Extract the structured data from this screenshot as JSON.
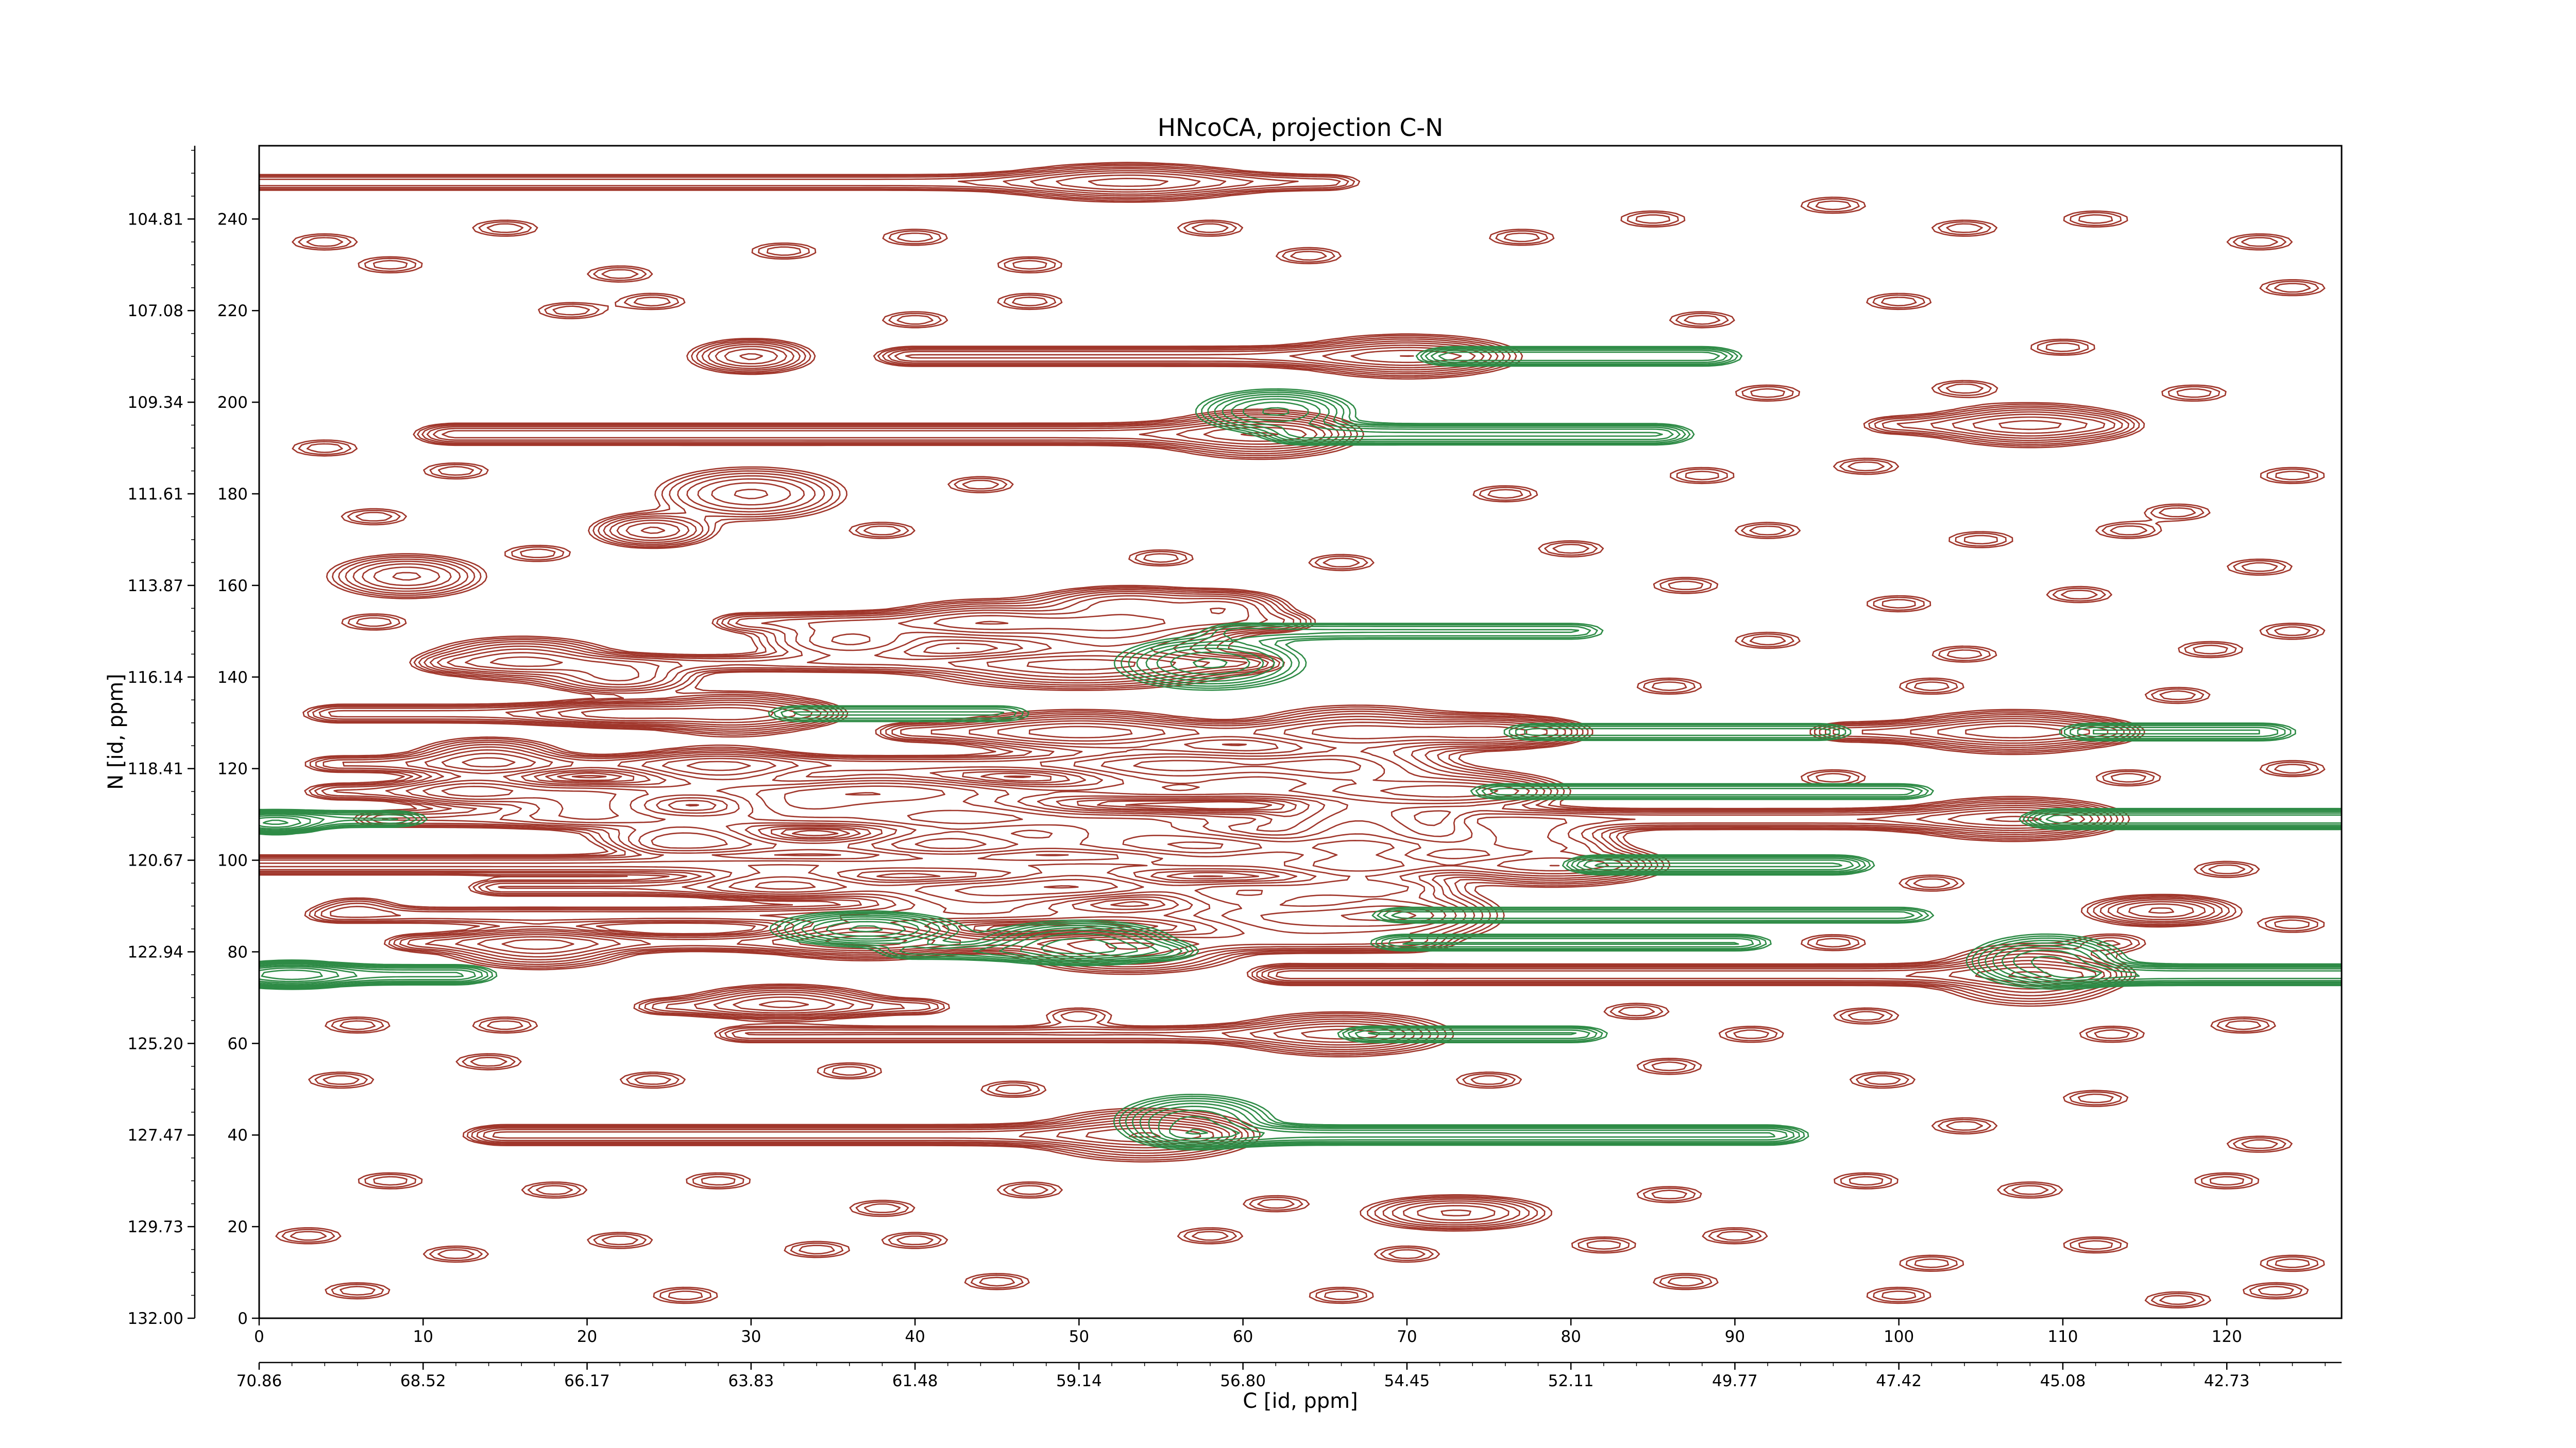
{
  "chart_data": {
    "type": "contour",
    "title": "HNcoCA, projection C-N",
    "xlabel": "C [id, ppm]",
    "ylabel": "N [id, ppm]",
    "xlim": [
      0,
      127
    ],
    "ylim": [
      0,
      256
    ],
    "x_ticks": [
      "0",
      "10",
      "20",
      "30",
      "40",
      "50",
      "60",
      "70",
      "80",
      "90",
      "100",
      "110",
      "120"
    ],
    "y_ticks": [
      "0",
      "20",
      "40",
      "60",
      "80",
      "100",
      "120",
      "140",
      "160",
      "180",
      "200",
      "220",
      "240"
    ],
    "x_ppm_ticks": [
      "70.86",
      "68.52",
      "66.17",
      "63.83",
      "61.48",
      "59.14",
      "56.80",
      "54.45",
      "52.11",
      "49.77",
      "47.42",
      "45.08",
      "42.73"
    ],
    "y_ppm_ticks": [
      "132.00",
      "129.73",
      "127.47",
      "125.20",
      "122.94",
      "120.67",
      "118.41",
      "116.14",
      "113.87",
      "111.61",
      "109.34",
      "107.08",
      "104.81"
    ],
    "colors": {
      "positive": "#a0362b",
      "negative": "#2e8b46"
    },
    "peaks": [
      {
        "x": 53,
        "y": 248,
        "sx": 4,
        "sy": 2.2,
        "sign": 1
      },
      {
        "x": 70,
        "y": 210,
        "sx": 3.5,
        "sy": 2.5,
        "sign": 1
      },
      {
        "x": 61,
        "y": 193,
        "sx": 3.2,
        "sy": 2.8,
        "sign": 1
      },
      {
        "x": 108,
        "y": 195,
        "sx": 3.2,
        "sy": 2.5,
        "sign": 1
      },
      {
        "x": 30,
        "y": 210,
        "sx": 2,
        "sy": 2,
        "sign": 1
      },
      {
        "x": 9,
        "y": 162,
        "sx": 2.5,
        "sy": 2.5,
        "sign": 1
      },
      {
        "x": 30,
        "y": 180,
        "sx": 3,
        "sy": 3,
        "sign": 1
      },
      {
        "x": 24,
        "y": 172,
        "sx": 2,
        "sy": 2,
        "sign": 1
      },
      {
        "x": 16,
        "y": 144,
        "sx": 3,
        "sy": 2.5,
        "sign": 1
      },
      {
        "x": 22,
        "y": 140,
        "sx": 2.5,
        "sy": 2,
        "sign": 1
      },
      {
        "x": 36,
        "y": 148,
        "sx": 3,
        "sy": 2.5,
        "sign": 1
      },
      {
        "x": 44,
        "y": 152,
        "sx": 3,
        "sy": 2.5,
        "sign": 1
      },
      {
        "x": 52,
        "y": 150,
        "sx": 4,
        "sy": 3,
        "sign": 1
      },
      {
        "x": 53,
        "y": 156,
        "sx": 3,
        "sy": 2,
        "sign": 1
      },
      {
        "x": 59,
        "y": 155,
        "sx": 2,
        "sy": 2,
        "sign": 1
      },
      {
        "x": 50,
        "y": 142,
        "sx": 5,
        "sy": 2.5,
        "sign": 1
      },
      {
        "x": 29,
        "y": 132,
        "sx": 3,
        "sy": 2.5,
        "sign": 1
      },
      {
        "x": 22,
        "y": 132,
        "sx": 3,
        "sy": 1.5,
        "sign": 1
      },
      {
        "x": 14,
        "y": 122,
        "sx": 2.5,
        "sy": 2.5,
        "sign": 1
      },
      {
        "x": 28,
        "y": 120,
        "sx": 3,
        "sy": 2.5,
        "sign": 1
      },
      {
        "x": 20,
        "y": 112,
        "sx": 3,
        "sy": 2.5,
        "sign": 1
      },
      {
        "x": 13,
        "y": 115,
        "sx": 2.5,
        "sy": 2,
        "sign": 1
      },
      {
        "x": 50,
        "y": 128,
        "sx": 4,
        "sy": 2.5,
        "sign": 1
      },
      {
        "x": 56,
        "y": 120,
        "sx": 4,
        "sy": 3,
        "sign": 1
      },
      {
        "x": 67,
        "y": 128,
        "sx": 3.5,
        "sy": 3,
        "sign": 1
      },
      {
        "x": 66,
        "y": 120,
        "sx": 3.5,
        "sy": 2.5,
        "sign": 1
      },
      {
        "x": 75,
        "y": 128,
        "sx": 3,
        "sy": 2,
        "sign": 1
      },
      {
        "x": 73,
        "y": 115,
        "sx": 3.5,
        "sy": 2.5,
        "sign": 1
      },
      {
        "x": 107,
        "y": 128,
        "sx": 3.5,
        "sy": 2.5,
        "sign": 1
      },
      {
        "x": 38,
        "y": 115,
        "sx": 4,
        "sy": 2.5,
        "sign": 1
      },
      {
        "x": 43,
        "y": 110,
        "sx": 4,
        "sy": 2.5,
        "sign": 1
      },
      {
        "x": 33,
        "y": 112,
        "sx": 3,
        "sy": 2,
        "sign": 1
      },
      {
        "x": 26,
        "y": 105,
        "sx": 3,
        "sy": 2,
        "sign": 1
      },
      {
        "x": 42,
        "y": 104,
        "sx": 3,
        "sy": 2,
        "sign": 1
      },
      {
        "x": 53,
        "y": 106,
        "sx": 4,
        "sy": 2.5,
        "sign": 1
      },
      {
        "x": 58,
        "y": 103,
        "sx": 3,
        "sy": 2,
        "sign": 1
      },
      {
        "x": 67,
        "y": 102,
        "sx": 3,
        "sy": 8,
        "sign": 1
      },
      {
        "x": 77,
        "y": 106,
        "sx": 3,
        "sy": 2,
        "sign": 1
      },
      {
        "x": 79,
        "y": 99,
        "sx": 3.5,
        "sy": 2.5,
        "sign": 1
      },
      {
        "x": 107,
        "y": 109,
        "sx": 3.5,
        "sy": 2.5,
        "sign": 1
      },
      {
        "x": 32,
        "y": 95,
        "sx": 3,
        "sy": 2,
        "sign": 1
      },
      {
        "x": 44,
        "y": 92,
        "sx": 4,
        "sy": 2.5,
        "sign": 1
      },
      {
        "x": 50,
        "y": 95,
        "sx": 3,
        "sy": 2,
        "sign": 1
      },
      {
        "x": 60,
        "y": 92,
        "sx": 3,
        "sy": 2,
        "sign": 1
      },
      {
        "x": 63,
        "y": 86,
        "sx": 4,
        "sy": 2.5,
        "sign": 1
      },
      {
        "x": 70,
        "y": 88,
        "sx": 3,
        "sy": 3,
        "sign": 1
      },
      {
        "x": 17,
        "y": 81,
        "sx": 3,
        "sy": 2.5,
        "sign": 1
      },
      {
        "x": 37,
        "y": 83,
        "sx": 3.5,
        "sy": 2.5,
        "sign": 1
      },
      {
        "x": 53,
        "y": 80,
        "sx": 3.5,
        "sy": 2.5,
        "sign": 1
      },
      {
        "x": 108,
        "y": 75,
        "sx": 3,
        "sy": 3.5,
        "sign": 1
      },
      {
        "x": 116,
        "y": 89,
        "sx": 2.5,
        "sy": 1.8,
        "sign": 1
      },
      {
        "x": 32,
        "y": 69,
        "sx": 3,
        "sy": 2,
        "sign": 1
      },
      {
        "x": 66,
        "y": 62,
        "sx": 3.5,
        "sy": 2.5,
        "sign": 1
      },
      {
        "x": 54,
        "y": 40,
        "sx": 3.5,
        "sy": 3,
        "sign": 1
      },
      {
        "x": 73,
        "y": 23,
        "sx": 3,
        "sy": 2,
        "sign": 1
      },
      {
        "x": 37,
        "y": 85,
        "sx": 3,
        "sy": 2,
        "sign": -1
      },
      {
        "x": 50,
        "y": 82,
        "sx": 3,
        "sy": 2.5,
        "sign": -1
      },
      {
        "x": 58,
        "y": 143,
        "sx": 3,
        "sy": 3,
        "sign": -1
      },
      {
        "x": 57,
        "y": 43,
        "sx": 2.5,
        "sy": 3,
        "sign": -1
      },
      {
        "x": 62,
        "y": 198,
        "sx": 2.5,
        "sy": 2.5,
        "sign": -1
      },
      {
        "x": 109,
        "y": 78,
        "sx": 2.5,
        "sy": 3,
        "sign": -1
      },
      {
        "x": 2,
        "y": 75,
        "sx": 2,
        "sy": 1.5,
        "sign": -1
      },
      {
        "x": 1,
        "y": 108,
        "sx": 1.5,
        "sy": 1.2,
        "sign": -1
      }
    ],
    "ridges": [
      {
        "y": 248,
        "x0": 0,
        "x1": 65,
        "sy": 1.2,
        "sign": 1,
        "a": 0.4
      },
      {
        "y": 210,
        "x0": 40,
        "x1": 73,
        "sy": 1.3,
        "sign": 1,
        "a": 0.6
      },
      {
        "y": 210,
        "x0": 73,
        "x1": 88,
        "sy": 1.3,
        "sign": -1,
        "a": 0.55
      },
      {
        "y": 193,
        "x0": 12,
        "x1": 63,
        "sy": 1.4,
        "sign": 1,
        "a": 0.65
      },
      {
        "y": 193,
        "x0": 64,
        "x1": 85,
        "sy": 1.4,
        "sign": -1,
        "a": 0.6
      },
      {
        "y": 195,
        "x0": 100,
        "x1": 112,
        "sy": 1.3,
        "sign": 1,
        "a": 0.4
      },
      {
        "y": 152,
        "x0": 30,
        "x1": 62,
        "sy": 1.3,
        "sign": 1,
        "a": 0.5
      },
      {
        "y": 150,
        "x0": 60,
        "x1": 80,
        "sy": 1.3,
        "sign": -1,
        "a": 0.35
      },
      {
        "y": 143,
        "x0": 12,
        "x1": 60,
        "sy": 1.2,
        "sign": 1,
        "a": 0.45
      },
      {
        "y": 132,
        "x0": 5,
        "x1": 33,
        "sy": 1.3,
        "sign": 1,
        "a": 0.5
      },
      {
        "y": 132,
        "x0": 33,
        "x1": 45,
        "sy": 1.3,
        "sign": -1,
        "a": 0.35
      },
      {
        "y": 128,
        "x0": 40,
        "x1": 78,
        "sy": 1.3,
        "sign": 1,
        "a": 0.5
      },
      {
        "y": 128,
        "x0": 78,
        "x1": 95,
        "sy": 1.3,
        "sign": -1,
        "a": 0.4
      },
      {
        "y": 128,
        "x0": 97,
        "x1": 112,
        "sy": 1.3,
        "sign": 1,
        "a": 0.55
      },
      {
        "y": 128,
        "x0": 112,
        "x1": 122,
        "sy": 1.3,
        "sign": -1,
        "a": 0.45
      },
      {
        "y": 121,
        "x0": 5,
        "x1": 65,
        "sy": 1.2,
        "sign": 1,
        "a": 0.45
      },
      {
        "y": 115,
        "x0": 5,
        "x1": 76,
        "sy": 1.2,
        "sign": 1,
        "a": 0.45
      },
      {
        "y": 115,
        "x0": 76,
        "x1": 100,
        "sy": 1.2,
        "sign": -1,
        "a": 0.4
      },
      {
        "y": 109,
        "x0": 0,
        "x1": 8,
        "sy": 1.2,
        "sign": -1,
        "a": 0.45
      },
      {
        "y": 109,
        "x0": 8,
        "x1": 60,
        "sy": 1.2,
        "sign": 1,
        "a": 0.45
      },
      {
        "y": 109,
        "x0": 75,
        "x1": 110,
        "sy": 1.3,
        "sign": 1,
        "a": 0.7
      },
      {
        "y": 109,
        "x0": 110,
        "x1": 127,
        "sy": 1.3,
        "sign": -1,
        "a": 0.7
      },
      {
        "y": 103,
        "x0": 25,
        "x1": 80,
        "sy": 1.2,
        "sign": 1,
        "a": 0.45
      },
      {
        "y": 99,
        "x0": 0,
        "x1": 82,
        "sy": 1.3,
        "sign": 1,
        "a": 0.6
      },
      {
        "y": 99,
        "x0": 82,
        "x1": 96,
        "sy": 1.3,
        "sign": -1,
        "a": 0.6
      },
      {
        "y": 94,
        "x0": 15,
        "x1": 70,
        "sy": 1.2,
        "sign": 1,
        "a": 0.45
      },
      {
        "y": 88,
        "x0": 5,
        "x1": 70,
        "sy": 1.2,
        "sign": 1,
        "a": 0.4
      },
      {
        "y": 88,
        "x0": 70,
        "x1": 100,
        "sy": 1.2,
        "sign": -1,
        "a": 0.4
      },
      {
        "y": 82,
        "x0": 10,
        "x1": 70,
        "sy": 1.2,
        "sign": 1,
        "a": 0.5
      },
      {
        "y": 82,
        "x0": 70,
        "x1": 90,
        "sy": 1.2,
        "sign": -1,
        "a": 0.45
      },
      {
        "y": 80,
        "x0": 40,
        "x1": 55,
        "sy": 1.2,
        "sign": -1,
        "a": 0.35
      },
      {
        "y": 75,
        "x0": 0,
        "x1": 12,
        "sy": 1.3,
        "sign": -1,
        "a": 0.6
      },
      {
        "y": 75,
        "x0": 63,
        "x1": 111,
        "sy": 1.3,
        "sign": 1,
        "a": 0.7
      },
      {
        "y": 75,
        "x0": 111,
        "x1": 127,
        "sy": 1.3,
        "sign": -1,
        "a": 0.7
      },
      {
        "y": 68,
        "x0": 25,
        "x1": 40,
        "sy": 1.2,
        "sign": 1,
        "a": 0.4
      },
      {
        "y": 62,
        "x0": 30,
        "x1": 68,
        "sy": 1.2,
        "sign": 1,
        "a": 0.45
      },
      {
        "y": 62,
        "x0": 68,
        "x1": 80,
        "sy": 1.2,
        "sign": -1,
        "a": 0.45
      },
      {
        "y": 40,
        "x0": 15,
        "x1": 57,
        "sy": 1.3,
        "sign": 1,
        "a": 0.65
      },
      {
        "y": 40,
        "x0": 57,
        "x1": 92,
        "sy": 1.3,
        "sign": -1,
        "a": 0.6
      }
    ],
    "noise": [
      {
        "x": 4,
        "y": 235
      },
      {
        "x": 8,
        "y": 230
      },
      {
        "x": 15,
        "y": 238
      },
      {
        "x": 22,
        "y": 228
      },
      {
        "x": 32,
        "y": 233
      },
      {
        "x": 40,
        "y": 236
      },
      {
        "x": 47,
        "y": 230
      },
      {
        "x": 58,
        "y": 238
      },
      {
        "x": 64,
        "y": 232
      },
      {
        "x": 77,
        "y": 236
      },
      {
        "x": 85,
        "y": 240
      },
      {
        "x": 96,
        "y": 243
      },
      {
        "x": 104,
        "y": 238
      },
      {
        "x": 112,
        "y": 240
      },
      {
        "x": 122,
        "y": 235
      },
      {
        "x": 19,
        "y": 220
      },
      {
        "x": 24,
        "y": 222
      },
      {
        "x": 40,
        "y": 218
      },
      {
        "x": 47,
        "y": 222
      },
      {
        "x": 88,
        "y": 218
      },
      {
        "x": 100,
        "y": 222
      },
      {
        "x": 110,
        "y": 212
      },
      {
        "x": 124,
        "y": 225
      },
      {
        "x": 92,
        "y": 202
      },
      {
        "x": 104,
        "y": 203
      },
      {
        "x": 118,
        "y": 202
      },
      {
        "x": 4,
        "y": 190
      },
      {
        "x": 12,
        "y": 185
      },
      {
        "x": 44,
        "y": 182
      },
      {
        "x": 76,
        "y": 180
      },
      {
        "x": 88,
        "y": 184
      },
      {
        "x": 98,
        "y": 186
      },
      {
        "x": 117,
        "y": 176
      },
      {
        "x": 124,
        "y": 184
      },
      {
        "x": 7,
        "y": 175
      },
      {
        "x": 17,
        "y": 167
      },
      {
        "x": 38,
        "y": 172
      },
      {
        "x": 55,
        "y": 166
      },
      {
        "x": 66,
        "y": 165
      },
      {
        "x": 80,
        "y": 168
      },
      {
        "x": 92,
        "y": 172
      },
      {
        "x": 105,
        "y": 170
      },
      {
        "x": 114,
        "y": 172
      },
      {
        "x": 122,
        "y": 164
      },
      {
        "x": 87,
        "y": 160
      },
      {
        "x": 100,
        "y": 156
      },
      {
        "x": 111,
        "y": 158
      },
      {
        "x": 124,
        "y": 150
      },
      {
        "x": 7,
        "y": 152
      },
      {
        "x": 92,
        "y": 148
      },
      {
        "x": 104,
        "y": 145
      },
      {
        "x": 119,
        "y": 146
      },
      {
        "x": 86,
        "y": 138
      },
      {
        "x": 102,
        "y": 138
      },
      {
        "x": 117,
        "y": 136
      },
      {
        "x": 124,
        "y": 120
      },
      {
        "x": 96,
        "y": 118
      },
      {
        "x": 114,
        "y": 118
      },
      {
        "x": 102,
        "y": 95
      },
      {
        "x": 120,
        "y": 98
      },
      {
        "x": 6,
        "y": 90
      },
      {
        "x": 96,
        "y": 82
      },
      {
        "x": 113,
        "y": 82
      },
      {
        "x": 124,
        "y": 86
      },
      {
        "x": 6,
        "y": 64
      },
      {
        "x": 15,
        "y": 64
      },
      {
        "x": 50,
        "y": 66
      },
      {
        "x": 84,
        "y": 67
      },
      {
        "x": 91,
        "y": 62
      },
      {
        "x": 98,
        "y": 66
      },
      {
        "x": 113,
        "y": 62
      },
      {
        "x": 121,
        "y": 64
      },
      {
        "x": 5,
        "y": 52
      },
      {
        "x": 14,
        "y": 56
      },
      {
        "x": 24,
        "y": 52
      },
      {
        "x": 36,
        "y": 54
      },
      {
        "x": 46,
        "y": 50
      },
      {
        "x": 75,
        "y": 52
      },
      {
        "x": 86,
        "y": 55
      },
      {
        "x": 99,
        "y": 52
      },
      {
        "x": 104,
        "y": 42
      },
      {
        "x": 112,
        "y": 48
      },
      {
        "x": 122,
        "y": 38
      },
      {
        "x": 8,
        "y": 30
      },
      {
        "x": 18,
        "y": 28
      },
      {
        "x": 28,
        "y": 30
      },
      {
        "x": 38,
        "y": 24
      },
      {
        "x": 47,
        "y": 28
      },
      {
        "x": 62,
        "y": 25
      },
      {
        "x": 86,
        "y": 27
      },
      {
        "x": 98,
        "y": 30
      },
      {
        "x": 108,
        "y": 28
      },
      {
        "x": 120,
        "y": 30
      },
      {
        "x": 3,
        "y": 18
      },
      {
        "x": 12,
        "y": 14
      },
      {
        "x": 22,
        "y": 17
      },
      {
        "x": 34,
        "y": 15
      },
      {
        "x": 40,
        "y": 17
      },
      {
        "x": 58,
        "y": 18
      },
      {
        "x": 70,
        "y": 14
      },
      {
        "x": 82,
        "y": 16
      },
      {
        "x": 90,
        "y": 18
      },
      {
        "x": 102,
        "y": 12
      },
      {
        "x": 112,
        "y": 16
      },
      {
        "x": 124,
        "y": 12
      },
      {
        "x": 6,
        "y": 6
      },
      {
        "x": 26,
        "y": 5
      },
      {
        "x": 45,
        "y": 8
      },
      {
        "x": 66,
        "y": 5
      },
      {
        "x": 87,
        "y": 8
      },
      {
        "x": 100,
        "y": 5
      },
      {
        "x": 117,
        "y": 4
      },
      {
        "x": 123,
        "y": 6
      }
    ]
  }
}
